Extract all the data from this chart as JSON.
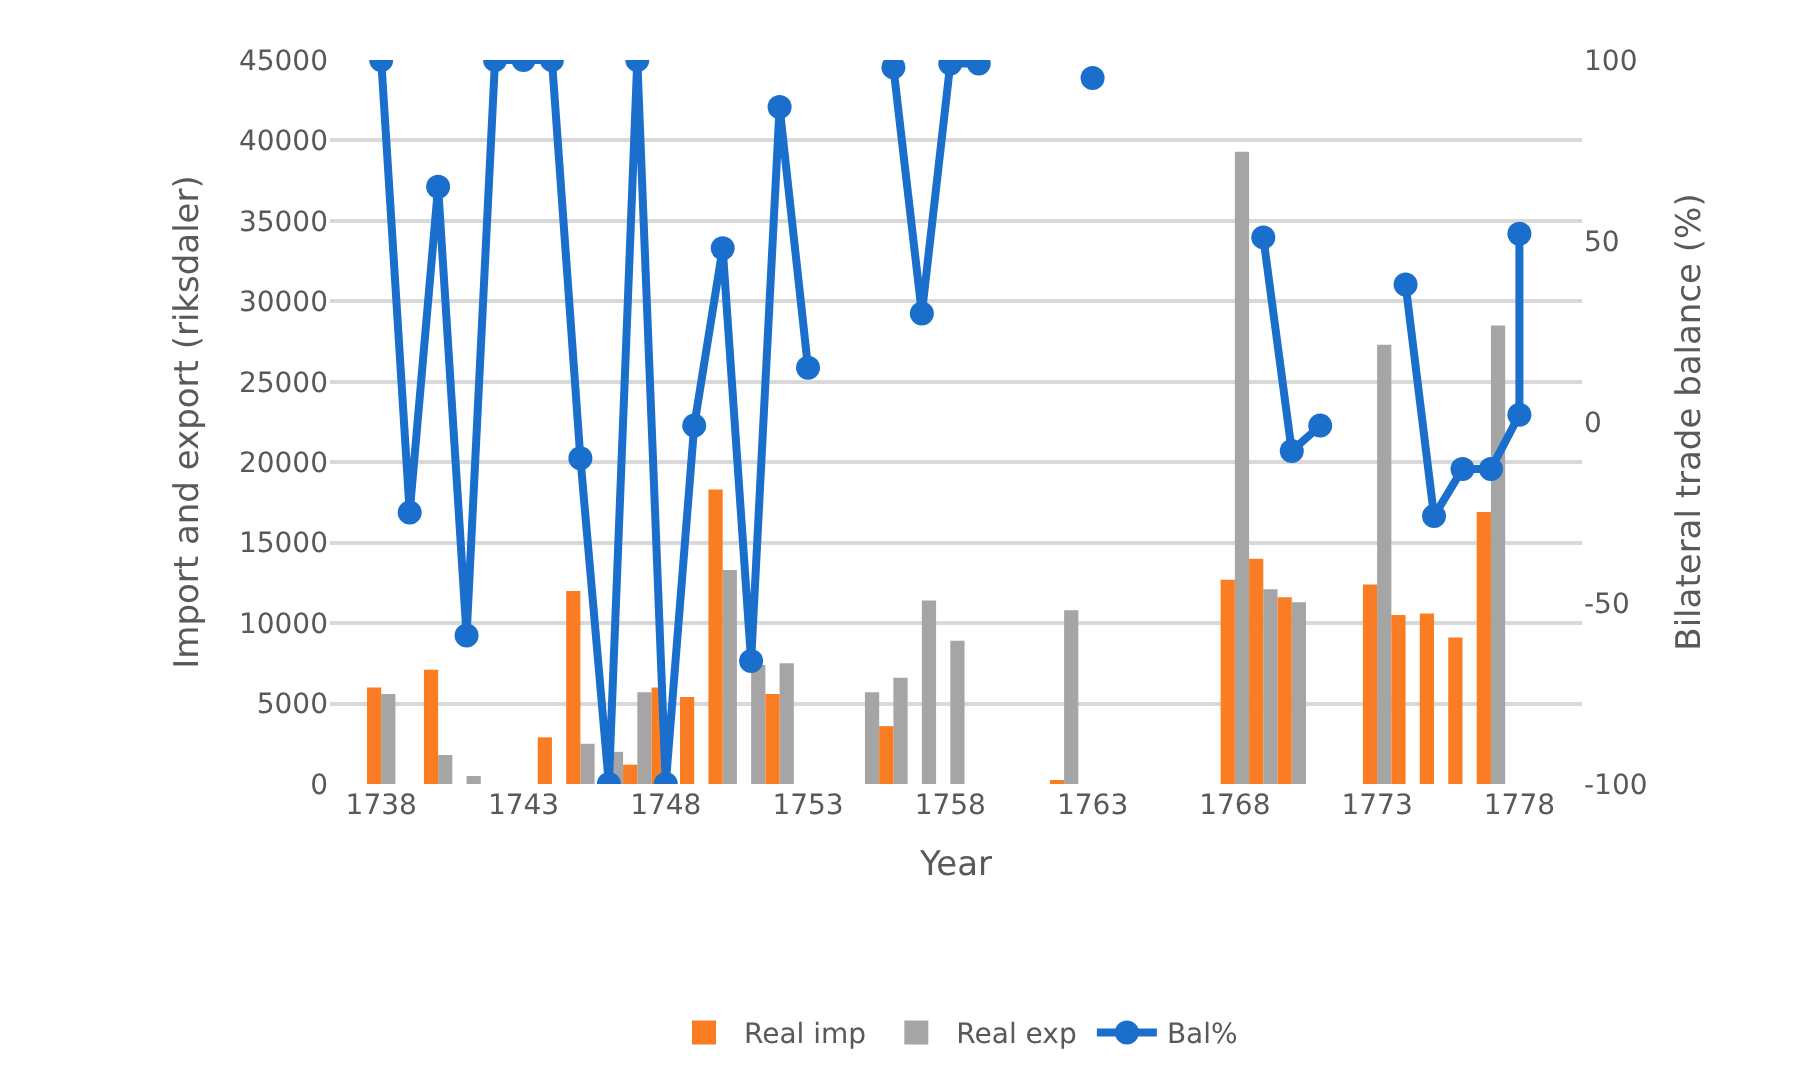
{
  "chart_data": {
    "type": "bar",
    "xlabel": "Year",
    "ylabel": "Import and export (riksdaler)",
    "y2label": "Bilateral trade balance (%)",
    "x": [
      1738,
      1739,
      1740,
      1741,
      1742,
      1743,
      1744,
      1745,
      1746,
      1747,
      1748,
      1749,
      1750,
      1751,
      1752,
      1753,
      1754,
      1755,
      1756,
      1757,
      1758,
      1759,
      1760,
      1761,
      1762,
      1763,
      1764,
      1765,
      1766,
      1767,
      1768,
      1769,
      1770,
      1771,
      1772,
      1773,
      1774,
      1775,
      1776,
      1777
    ],
    "series": [
      {
        "name": "Real imp",
        "color": "#fa7d23",
        "values": [
          6000,
          null,
          7100,
          null,
          null,
          null,
          2900,
          12000,
          null,
          1200,
          6000,
          5400,
          18300,
          null,
          5600,
          null,
          null,
          null,
          3600,
          null,
          null,
          null,
          null,
          null,
          200,
          null,
          null,
          null,
          null,
          null,
          12700,
          14000,
          11600,
          null,
          null,
          12400,
          10500,
          10600,
          9100,
          16900
        ]
      },
      {
        "name": "Real exp",
        "color": "#a5a5a5",
        "values": [
          5600,
          null,
          1800,
          500,
          null,
          null,
          null,
          2500,
          2000,
          5700,
          null,
          null,
          13300,
          7400,
          7500,
          null,
          null,
          5700,
          6600,
          11400,
          8900,
          null,
          null,
          null,
          10800,
          null,
          null,
          null,
          null,
          null,
          39300,
          12100,
          11300,
          null,
          null,
          27300,
          null,
          null,
          null,
          28500
        ]
      },
      {
        "name": "Bal%",
        "type": "line",
        "axis": "y2",
        "color": "#1a6ecc",
        "x": [
          1738,
          1739,
          1740,
          1741,
          1742,
          1743,
          1744,
          1745,
          1746,
          1747,
          1748,
          1749,
          1750,
          1751,
          1752,
          1753,
          1754,
          1755,
          1756,
          1757,
          1758,
          1759,
          1760,
          1761,
          1762,
          1763,
          1764,
          1765,
          1766,
          1767,
          1768,
          1769,
          1770,
          1771,
          1772,
          1773,
          1774,
          1775,
          1776,
          1777,
          1778,
          1778
        ],
        "values": [
          100,
          -25,
          65,
          -59,
          100,
          100,
          100,
          -10,
          -100,
          100,
          -100,
          -1,
          48,
          -66,
          87,
          15,
          null,
          null,
          98,
          30,
          99,
          99,
          null,
          null,
          null,
          95,
          null,
          null,
          null,
          null,
          null,
          51,
          -8,
          -1,
          null,
          null,
          38,
          -26,
          -13,
          -13,
          2,
          52
        ]
      }
    ],
    "xlim": [
      1736.2,
      1780.2
    ],
    "xticks": [
      1738,
      1743,
      1748,
      1753,
      1758,
      1763,
      1768,
      1773,
      1778
    ],
    "ylim": [
      0,
      45000
    ],
    "yticks": [
      0,
      5000,
      10000,
      15000,
      20000,
      25000,
      30000,
      35000,
      40000,
      45000
    ],
    "y2lim": [
      -100,
      100
    ],
    "y2ticks": [
      -100,
      -50,
      0,
      50,
      100
    ],
    "grid": "y",
    "legend": "bottom",
    "marker": "circle",
    "line_style": "solid"
  }
}
